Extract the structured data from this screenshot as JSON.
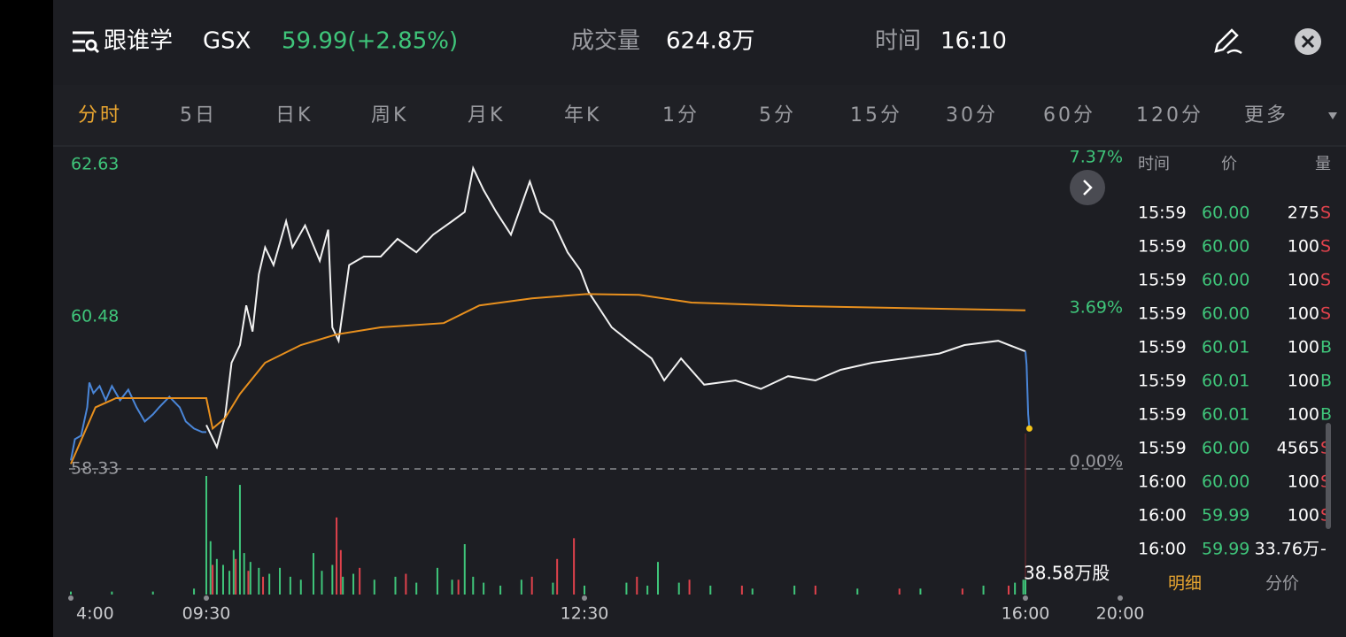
{
  "header": {
    "name": "跟谁学",
    "symbol": "GSX",
    "price": "59.99(+2.85%)",
    "volume_label": "成交量",
    "volume": "624.8万",
    "time_label": "时间",
    "time": "16:10"
  },
  "tabs": [
    "分时",
    "5日",
    "日K",
    "周K",
    "月K",
    "年K",
    "1分",
    "5分",
    "15分",
    "30分",
    "60分",
    "120分",
    "更多"
  ],
  "chart_data": {
    "type": "line",
    "xlim": [
      0,
      960
    ],
    "xticks": [
      {
        "value": 0,
        "label": "4:00"
      },
      {
        "value": 330,
        "label": "09:30"
      },
      {
        "value": 510,
        "label": "12:30"
      },
      {
        "value": 720,
        "label": "16:00"
      },
      {
        "value": 960,
        "label": "20:00"
      }
    ],
    "ylim": [
      58.33,
      62.63
    ],
    "yticks": [
      62.63,
      60.48,
      58.33
    ],
    "y2lim": [
      0,
      7.37
    ],
    "y2ticks": [
      {
        "value": 7.37,
        "label": "7.37%"
      },
      {
        "value": 3.69,
        "label": "3.69%"
      },
      {
        "value": 0,
        "label": "0.00%"
      }
    ],
    "series": [
      {
        "color": "#4a86d8",
        "x": [
          0,
          10,
          25,
          40,
          45,
          55,
          70,
          85,
          100,
          120,
          140,
          160,
          180,
          200,
          215,
          240,
          265,
          280,
          300,
          320,
          330
        ],
        "values": [
          58.45,
          58.75,
          58.8,
          59.2,
          59.55,
          59.4,
          59.5,
          59.3,
          59.5,
          59.3,
          59.45,
          59.2,
          59.0,
          59.1,
          59.2,
          59.35,
          59.2,
          59.0,
          58.9,
          58.85,
          58.85
        ]
      },
      {
        "color": "#f2f2f2",
        "x": [
          330,
          335,
          339,
          342,
          346,
          349,
          352,
          355,
          358,
          362,
          368,
          371,
          377,
          384,
          388,
          390,
          393,
          398,
          405,
          413,
          421,
          430,
          438,
          447,
          453,
          457,
          462,
          468,
          475,
          484,
          489,
          495,
          502,
          508,
          512,
          523,
          531,
          542,
          548,
          556,
          567,
          582,
          594,
          607,
          620,
          632,
          647,
          662,
          679,
          691,
          707,
          720
        ],
        "values": [
          58.95,
          58.64,
          59.08,
          59.83,
          60.08,
          60.64,
          60.27,
          61.08,
          61.46,
          61.21,
          61.83,
          61.46,
          61.77,
          61.27,
          61.71,
          60.33,
          60.14,
          61.21,
          61.33,
          61.33,
          61.58,
          61.39,
          61.64,
          61.83,
          61.96,
          62.58,
          62.27,
          61.96,
          61.64,
          62.39,
          61.96,
          61.83,
          61.39,
          61.14,
          60.83,
          60.33,
          60.14,
          59.89,
          59.58,
          59.89,
          59.52,
          59.58,
          59.46,
          59.64,
          59.58,
          59.73,
          59.83,
          59.89,
          59.96,
          60.08,
          60.14,
          59.99
        ]
      },
      {
        "color": "#4a86d8",
        "x": [
          720,
          723,
          727,
          730
        ],
        "values": [
          59.99,
          59.8,
          59.1,
          58.9
        ]
      },
      {
        "color": "#e8901e",
        "x": [
          0,
          60,
          110,
          330,
          333,
          339,
          346,
          358,
          375,
          392,
          413,
          443,
          460,
          485,
          511,
          536,
          561,
          612,
          720
        ],
        "values": [
          58.4,
          59.2,
          59.33,
          59.33,
          58.9,
          59.05,
          59.39,
          59.83,
          60.08,
          60.23,
          60.33,
          60.39,
          60.64,
          60.74,
          60.8,
          60.79,
          60.68,
          60.63,
          60.57
        ]
      }
    ],
    "volume": [
      {
        "color": "#3fc57a",
        "x": [
          0,
          100,
          200,
          300,
          330,
          332,
          335,
          338,
          341,
          343,
          346,
          348,
          351,
          355,
          360,
          365,
          370,
          375,
          381,
          385,
          390,
          395,
          400,
          410,
          420,
          430,
          440,
          447,
          453,
          457,
          462,
          470,
          480,
          495,
          510,
          530,
          540,
          545,
          555,
          570,
          590,
          610,
          640,
          670,
          700,
          715,
          719,
          720
        ],
        "values": [
          1,
          1,
          1,
          2,
          40,
          18,
          12,
          10,
          8,
          15,
          37,
          14,
          11,
          9,
          7,
          9,
          6,
          5,
          14,
          8,
          10,
          6,
          7,
          5,
          6,
          4,
          9,
          5,
          17,
          6,
          4,
          3,
          5,
          4,
          3,
          4,
          3,
          11,
          4,
          3,
          2,
          3,
          2,
          2,
          3,
          4,
          5,
          5
        ]
      },
      {
        "color": "#e0424c",
        "x": [
          333,
          344,
          350,
          357,
          392,
          394,
          403,
          425,
          450,
          485,
          497,
          505,
          535,
          560,
          585,
          620,
          660,
          690,
          712
        ],
        "values": [
          10,
          12,
          8,
          6,
          26,
          15,
          9,
          7,
          5,
          6,
          12,
          19,
          6,
          5,
          3,
          3,
          2,
          2,
          3
        ]
      }
    ],
    "volume_label": "38.58万股"
  },
  "trades": {
    "header": [
      "时间",
      "价",
      "量"
    ],
    "rows": [
      [
        "15:59",
        "60.00",
        "275",
        "S"
      ],
      [
        "15:59",
        "60.00",
        "100",
        "S"
      ],
      [
        "15:59",
        "60.00",
        "100",
        "S"
      ],
      [
        "15:59",
        "60.00",
        "100",
        "S"
      ],
      [
        "15:59",
        "60.01",
        "100",
        "B"
      ],
      [
        "15:59",
        "60.01",
        "100",
        "B"
      ],
      [
        "15:59",
        "60.01",
        "100",
        "B"
      ],
      [
        "15:59",
        "60.00",
        "4565",
        "S"
      ],
      [
        "16:00",
        "60.00",
        "100",
        "S"
      ],
      [
        "16:00",
        "59.99",
        "100",
        "S"
      ],
      [
        "16:00",
        "59.99",
        "33.76万",
        "-"
      ]
    ],
    "tabs": [
      "明细",
      "分价"
    ]
  }
}
